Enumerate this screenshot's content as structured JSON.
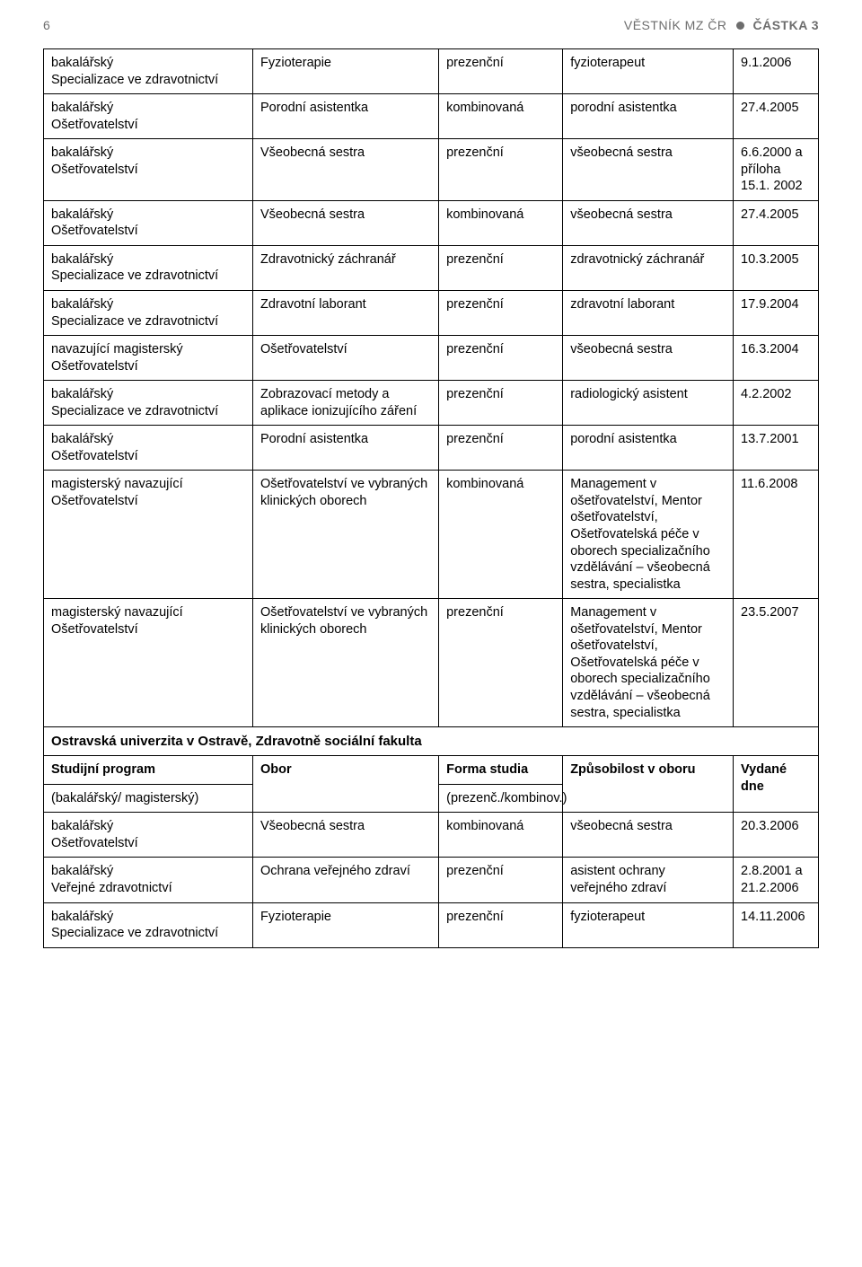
{
  "header": {
    "page_number": "6",
    "journal": "VĚSTNÍK MZ ČR",
    "issue": "ČÁSTKA 3"
  },
  "table1": {
    "rows": [
      {
        "c1a": "bakalářský",
        "c1b": "Specializace ve zdravotnictví",
        "c2": "Fyzioterapie",
        "c3": "prezenční",
        "c4": "fyzioterapeut",
        "c5": "9.1.2006"
      },
      {
        "c1a": "bakalářský",
        "c1b": "Ošetřovatelství",
        "c2": "Porodní asistentka",
        "c3": "kombinovaná",
        "c4": "porodní asistentka",
        "c5": "27.4.2005"
      },
      {
        "c1a": "bakalářský",
        "c1b": "Ošetřovatelství",
        "c2": "Všeobecná sestra",
        "c3": "prezenční",
        "c4": "všeobecná sestra",
        "c5": "6.6.2000 a příloha 15.1. 2002"
      },
      {
        "c1a": "bakalářský",
        "c1b": "Ošetřovatelství",
        "c2": "Všeobecná sestra",
        "c3": "kombinovaná",
        "c4": "všeobecná sestra",
        "c5": "27.4.2005"
      },
      {
        "c1a": "bakalářský",
        "c1b": "Specializace ve zdravotnictví",
        "c2": "Zdravotnický záchranář",
        "c3": "prezenční",
        "c4": "zdravotnický záchranář",
        "c5": "10.3.2005"
      },
      {
        "c1a": "bakalářský",
        "c1b": "Specializace ve zdravotnictví",
        "c2": "Zdravotní laborant",
        "c3": "prezenční",
        "c4": "zdravotní laborant",
        "c5": "17.9.2004"
      },
      {
        "c1a": "navazující magisterský",
        "c1b": "Ošetřovatelství",
        "c2": "Ošetřovatelství",
        "c3": "prezenční",
        "c4": "všeobecná sestra",
        "c5": "16.3.2004"
      },
      {
        "c1a": "bakalářský",
        "c1b": "Specializace ve zdravotnictví",
        "c2": "Zobrazovací metody a aplikace ionizujícího záření",
        "c3": "prezenční",
        "c4": "radiologický asistent",
        "c5": "4.2.2002"
      },
      {
        "c1a": "bakalářský",
        "c1b": "Ošetřovatelství",
        "c2": "Porodní asistentka",
        "c3": "prezenční",
        "c4": "porodní asistentka",
        "c5": "13.7.2001"
      },
      {
        "c1a": "magisterský navazující",
        "c1b": "Ošetřovatelství",
        "c2": "Ošetřovatelství ve vybraných klinických oborech",
        "c3": "kombinovaná",
        "c4": "Management v ošetřovatelství, Mentor  ošetřovatelství, Ošetřovatelská péče v oborech specializačního vzdělávání – všeobecná sestra, specialistka",
        "c5": "11.6.2008"
      },
      {
        "c1a": "magisterský navazující",
        "c1b": "Ošetřovatelství",
        "c2": "Ošetřovatelství ve vybraných klinických oborech",
        "c3": "prezenční",
        "c4": "Management v ošetřovatelství, Mentor ošetřovatelství, Ošetřovatelská péče v oborech specializačního vzdělávání – všeobecná sestra, specialistka",
        "c5": "23.5.2007"
      }
    ]
  },
  "table2": {
    "section_title": "Ostravská univerzita v Ostravě, Zdravotně sociální fakulta",
    "header": {
      "c1a": "Studijní program",
      "c1b": "(bakalářský/ magisterský)",
      "c2": "Obor",
      "c3a": "Forma studia",
      "c3b": "(prezenč./kombinov.)",
      "c4": "Způsobilost v oboru",
      "c5": "Vydané dne"
    },
    "rows": [
      {
        "c1a": "bakalářský",
        "c1b": "Ošetřovatelství",
        "c2": "Všeobecná sestra",
        "c3": "kombinovaná",
        "c4": "všeobecná sestra",
        "c5": "20.3.2006"
      },
      {
        "c1a": "bakalářský",
        "c1b": "Veřejné zdravotnictví",
        "c2": "Ochrana veřejného zdraví",
        "c3": "prezenční",
        "c4": "asistent ochrany veřejného zdraví",
        "c5": "2.8.2001 a 21.2.2006"
      },
      {
        "c1a": "bakalářský",
        "c1b": "Specializace ve zdravotnictví",
        "c2": "Fyzioterapie",
        "c3": "prezenční",
        "c4": "fyzioterapeut",
        "c5": "14.11.2006"
      }
    ]
  }
}
